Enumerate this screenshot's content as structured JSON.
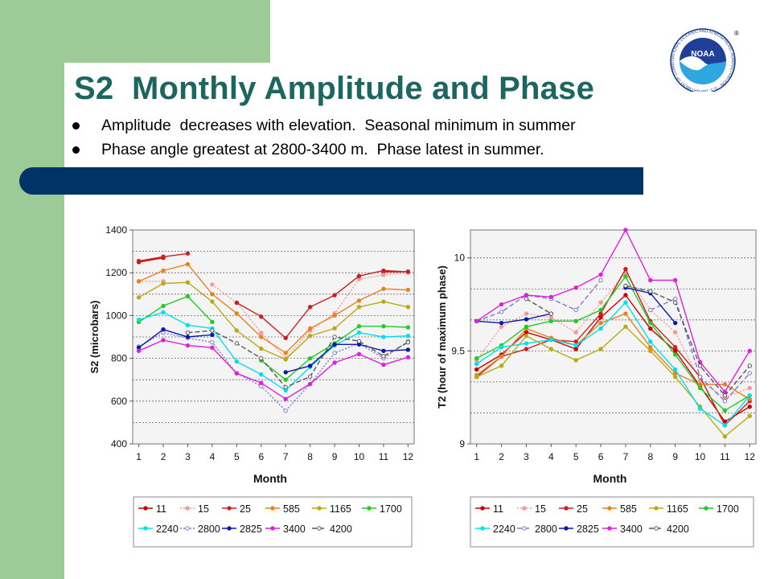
{
  "slide": {
    "title": "S2  Monthly Amplitude and Phase",
    "bullets": [
      "Amplitude  decreases with elevation.  Seasonal minimum in summer",
      "Phase angle greatest at 2800-3400 m.  Phase latest in summer."
    ],
    "logo_text": "NOAA",
    "logo_ring_text": "NATIONAL OCEANIC AND ATMOSPHERIC ADMINISTRATION · U.S. DEPARTMENT OF COMMERCE",
    "registered_mark": "®"
  },
  "colors": {
    "green_band": "#9dcb97",
    "title": "#1d6660",
    "navy_bar": "#003366"
  },
  "chart_data": [
    {
      "type": "line",
      "xlabel": "Month",
      "ylabel": "S2 (microbars)",
      "x": [
        1,
        2,
        3,
        4,
        5,
        6,
        7,
        8,
        9,
        10,
        11,
        12
      ],
      "ylim": [
        400,
        1400
      ],
      "yticks": [
        400,
        600,
        800,
        1000,
        1200,
        1400
      ],
      "ytick_labels": [
        "400",
        "600",
        "800",
        "1000",
        "1200",
        "1400"
      ],
      "grid": "horizontal",
      "legend_position": "bottom",
      "series": [
        {
          "name": "11",
          "color": "#cc0000",
          "dash": "",
          "marker": "filled",
          "values": [
            1250,
            1270,
            null,
            null,
            null,
            null,
            null,
            null,
            null,
            null,
            1205,
            1205
          ]
        },
        {
          "name": "15",
          "color": "#f29a9a",
          "dash": "2,2",
          "marker": "filled",
          "values": [
            1160,
            1160,
            null,
            1145,
            1060,
            920,
            800,
            930,
            1010,
            1170,
            1190,
            1200
          ]
        },
        {
          "name": "25",
          "color": "#cc1f1f",
          "dash": "",
          "marker": "filled",
          "values": [
            1255,
            1275,
            1290,
            null,
            1060,
            995,
            895,
            1040,
            1095,
            1185,
            1210,
            1205
          ]
        },
        {
          "name": "585",
          "color": "#e8821e",
          "dash": "",
          "marker": "filled",
          "values": [
            1160,
            1210,
            1240,
            1100,
            1010,
            900,
            825,
            940,
            1000,
            1070,
            1125,
            1120
          ]
        },
        {
          "name": "1165",
          "color": "#b8ab14",
          "dash": "",
          "marker": "filled",
          "values": [
            1085,
            1150,
            1155,
            1065,
            930,
            845,
            795,
            905,
            940,
            1040,
            1065,
            1040
          ]
        },
        {
          "name": "1700",
          "color": "#22cc22",
          "dash": "",
          "marker": "filled",
          "values": [
            970,
            1045,
            1090,
            970,
            null,
            790,
            700,
            800,
            870,
            950,
            950,
            945
          ]
        },
        {
          "name": "2240",
          "color": "#00e0f0",
          "dash": "",
          "marker": "filled",
          "values": [
            980,
            1015,
            955,
            940,
            785,
            725,
            650,
            760,
            860,
            920,
            900,
            905
          ]
        },
        {
          "name": "2800",
          "color": "#7a7ac8",
          "dash": "2,2",
          "marker": "open",
          "values": [
            855,
            920,
            895,
            875,
            730,
            670,
            555,
            680,
            825,
            870,
            800,
            880
          ]
        },
        {
          "name": "2825",
          "color": "#0a1aa8",
          "dash": "",
          "marker": "filled",
          "values": [
            850,
            935,
            900,
            910,
            null,
            null,
            735,
            765,
            865,
            865,
            835,
            840
          ]
        },
        {
          "name": "3400",
          "color": "#dd22dd",
          "dash": "",
          "marker": "filled",
          "values": [
            835,
            885,
            860,
            850,
            730,
            685,
            610,
            680,
            780,
            820,
            770,
            805
          ]
        },
        {
          "name": "4200",
          "color": "#555555",
          "dash": "6,3",
          "marker": "open",
          "values": [
            null,
            null,
            920,
            930,
            870,
            800,
            665,
            715,
            900,
            880,
            810,
            875
          ]
        }
      ]
    },
    {
      "type": "line",
      "xlabel": "Month",
      "ylabel": "T2 (hour of maximum phase)",
      "x": [
        1,
        2,
        3,
        4,
        5,
        6,
        7,
        8,
        9,
        10,
        11,
        12
      ],
      "ylim": [
        9,
        10.15
      ],
      "yticks": [
        9,
        9.5,
        10
      ],
      "ytick_labels": [
        "9",
        "9.5",
        "10"
      ],
      "grid": "horizontal",
      "legend_position": "bottom",
      "series": [
        {
          "name": "11",
          "color": "#cc0000",
          "dash": "",
          "marker": "filled",
          "values": [
            9.4,
            9.48,
            9.6,
            9.56,
            9.51,
            9.68,
            9.8,
            9.62,
            9.5,
            9.31,
            9.12,
            9.2
          ]
        },
        {
          "name": "15",
          "color": "#f29a9a",
          "dash": "2,2",
          "marker": "filled",
          "values": [
            9.45,
            9.63,
            9.7,
            9.68,
            9.6,
            9.76,
            9.92,
            9.72,
            9.6,
            9.34,
            9.25,
            9.3
          ]
        },
        {
          "name": "25",
          "color": "#cc1f1f",
          "dash": "",
          "marker": "filled",
          "values": [
            9.36,
            9.47,
            9.51,
            9.56,
            9.55,
            9.7,
            9.94,
            9.66,
            9.52,
            9.36,
            9.1,
            9.23
          ]
        },
        {
          "name": "585",
          "color": "#e8821e",
          "dash": "",
          "marker": "filled",
          "values": [
            9.37,
            9.47,
            9.62,
            9.57,
            9.53,
            9.65,
            9.7,
            9.52,
            9.38,
            9.32,
            9.32,
            9.24
          ]
        },
        {
          "name": "1165",
          "color": "#b8ab14",
          "dash": "",
          "marker": "filled",
          "values": [
            9.36,
            9.42,
            9.58,
            9.51,
            9.45,
            9.51,
            9.63,
            9.5,
            9.36,
            9.2,
            9.04,
            9.15
          ]
        },
        {
          "name": "1700",
          "color": "#22cc22",
          "dash": "",
          "marker": "filled",
          "values": [
            9.46,
            9.53,
            9.63,
            9.66,
            9.66,
            9.72,
            9.9,
            9.65,
            9.48,
            9.3,
            9.18,
            9.26
          ]
        },
        {
          "name": "2240",
          "color": "#00e0f0",
          "dash": "",
          "marker": "filled",
          "values": [
            9.43,
            9.52,
            9.54,
            9.56,
            9.53,
            9.62,
            9.76,
            9.55,
            9.4,
            9.19,
            9.1,
            9.26
          ]
        },
        {
          "name": "2800",
          "color": "#7a7ac8",
          "dash": "6,3",
          "marker": "open",
          "values": [
            9.66,
            9.71,
            9.8,
            9.78,
            9.72,
            9.88,
            null,
            9.72,
            9.78,
            9.36,
            9.23,
            9.38
          ]
        },
        {
          "name": "2825",
          "color": "#0a1aa8",
          "dash": "",
          "marker": "filled",
          "values": [
            9.66,
            9.65,
            9.67,
            9.7,
            null,
            null,
            9.84,
            9.81,
            9.65,
            null,
            null,
            null
          ]
        },
        {
          "name": "3400",
          "color": "#dd22dd",
          "dash": "",
          "marker": "filled",
          "values": [
            9.66,
            9.75,
            9.8,
            9.79,
            9.84,
            9.91,
            10.15,
            9.88,
            9.88,
            9.44,
            9.28,
            9.5
          ]
        },
        {
          "name": "4200",
          "color": "#555555",
          "dash": "6,3",
          "marker": "open",
          "values": [
            null,
            null,
            9.78,
            9.7,
            null,
            null,
            9.85,
            9.82,
            9.76,
            9.42,
            9.26,
            9.42
          ]
        }
      ]
    }
  ]
}
